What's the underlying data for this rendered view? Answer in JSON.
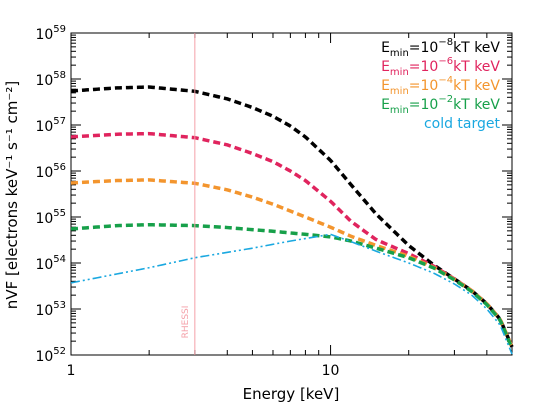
{
  "chart_data": {
    "type": "line",
    "title": "",
    "xlabel": "Energy [keV]",
    "ylabel": "nVF [electrons keV⁻¹ s⁻¹ cm⁻²]",
    "xscale": "log",
    "yscale": "log",
    "xlim": [
      1,
      50
    ],
    "ylim": [
      1e+52,
      1e+59
    ],
    "x_tick_labels": [
      "1",
      "10"
    ],
    "y_tick_labels": [
      {
        "base": "10",
        "exp": "52"
      },
      {
        "base": "10",
        "exp": "53"
      },
      {
        "base": "10",
        "exp": "54"
      },
      {
        "base": "10",
        "exp": "55"
      },
      {
        "base": "10",
        "exp": "56"
      },
      {
        "base": "10",
        "exp": "57"
      },
      {
        "base": "10",
        "exp": "58"
      },
      {
        "base": "10",
        "exp": "59"
      }
    ],
    "grid": false,
    "legend_position": "top-right",
    "annotations": [
      {
        "text": "RHESSI",
        "x": 3,
        "color": "#f4a0a8"
      }
    ],
    "series": [
      {
        "name": "E_min=10^-8 kT keV",
        "legend": {
          "base": "E",
          "sub": "min",
          "mid": "=10",
          "sup": "−8",
          "tail": "kT  keV"
        },
        "color": "#000000",
        "style": "dashed",
        "x": [
          1,
          1.5,
          2,
          3,
          4,
          5,
          6,
          7,
          8,
          10,
          12,
          15,
          20,
          25,
          30,
          35,
          40,
          45,
          50
        ],
        "y": [
          5.5e+57,
          6.4e+57,
          6.7e+57,
          5.4e+57,
          3.7e+57,
          2.4e+57,
          1.55e+57,
          9.5e+56,
          5.5e+56,
          1.7e+56,
          5e+55,
          1.15e+55,
          2.4e+54,
          9e+53,
          4.5e+53,
          2.5e+53,
          1.3e+53,
          6e+52,
          1.5e+52
        ]
      },
      {
        "name": "E_min=10^-6 kT keV",
        "legend": {
          "base": "E",
          "sub": "min",
          "mid": "=10",
          "sup": "−6",
          "tail": "kT  keV"
        },
        "color": "#e0245e",
        "style": "dashed",
        "x": [
          1,
          1.5,
          2,
          3,
          4,
          5,
          6,
          7,
          8,
          10,
          12,
          15,
          20,
          25,
          30,
          35,
          40,
          45,
          50
        ],
        "y": [
          5.5e+56,
          6.3e+56,
          6.5e+56,
          5.3e+56,
          3.7e+56,
          2.4e+56,
          1.6e+56,
          1e+56,
          6.2e+55,
          2.2e+55,
          8e+54,
          3.2e+54,
          1.6e+54,
          8.5e+53,
          4.5e+53,
          2.5e+53,
          1.3e+53,
          6e+52,
          1.5e+52
        ]
      },
      {
        "name": "E_min=10^-4 kT keV",
        "legend": {
          "base": "E",
          "sub": "min",
          "mid": "=10",
          "sup": "−4",
          "tail": "kT  keV"
        },
        "color": "#f3952e",
        "style": "dashed",
        "x": [
          1,
          1.5,
          2,
          3,
          4,
          5,
          6,
          7,
          8,
          10,
          12,
          15,
          20,
          25,
          30,
          35,
          40,
          45,
          50
        ],
        "y": [
          5.5e+55,
          6.2e+55,
          6.4e+55,
          5.4e+55,
          3.9e+55,
          2.7e+55,
          1.9e+55,
          1.35e+55,
          1e+55,
          6e+54,
          3.8e+54,
          2.4e+54,
          1.4e+54,
          8e+53,
          4.4e+53,
          2.5e+53,
          1.3e+53,
          6e+52,
          1.5e+52
        ]
      },
      {
        "name": "E_min=10^-2 kT keV",
        "legend": {
          "base": "E",
          "sub": "min",
          "mid": "=10",
          "sup": "−2",
          "tail": "kT  keV"
        },
        "color": "#17a04a",
        "style": "dashed",
        "x": [
          1,
          1.5,
          2,
          3,
          4,
          5,
          6,
          7,
          8,
          10,
          12,
          15,
          20,
          25,
          30,
          35,
          40,
          45,
          50
        ],
        "y": [
          5.5e+54,
          6.5e+54,
          6.8e+54,
          6.5e+54,
          5.9e+54,
          5.3e+54,
          4.9e+54,
          4.5e+54,
          4.2e+54,
          3.7e+54,
          3e+54,
          2.1e+54,
          1.3e+54,
          7.8e+53,
          4.3e+53,
          2.4e+53,
          1.25e+53,
          5.8e+52,
          1.4e+52
        ]
      },
      {
        "name": "cold target",
        "legend": {
          "base": "cold target",
          "sub": "",
          "mid": "",
          "sup": "",
          "tail": ""
        },
        "color": "#1aa8e0",
        "style": "dashdot",
        "x": [
          1,
          2,
          3,
          5,
          7,
          10,
          12,
          15,
          20,
          25,
          30,
          35,
          40,
          45,
          50
        ],
        "y": [
          3.7e+53,
          7.9e+53,
          1.3e+54,
          2.1e+54,
          3e+54,
          4.2e+54,
          2.9e+54,
          1.8e+54,
          1e+54,
          6e+53,
          3.5e+53,
          2e+53,
          1e+53,
          4.5e+52,
          1.05e+52
        ]
      }
    ]
  }
}
